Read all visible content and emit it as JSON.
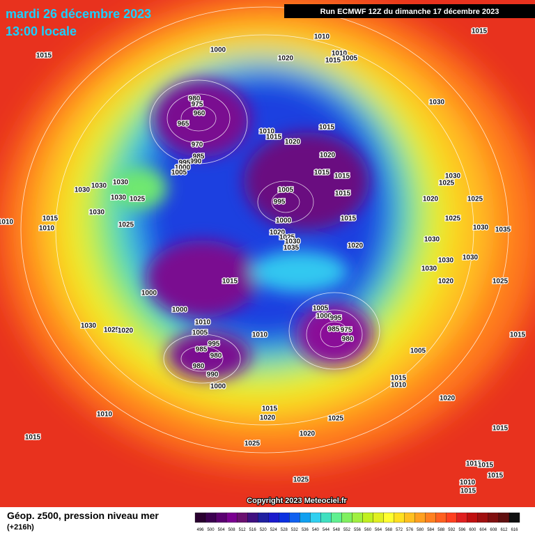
{
  "header": {
    "date": "mardi 26 décembre 2023",
    "time": "13:00 locale",
    "run": "Run ECMWF 12Z du dimanche 17 décembre 2023"
  },
  "copyright": "Copyright 2023 Meteociel.fr",
  "legend": {
    "title": "Géop. z500, pression niveau mer",
    "subtitle": "(+216h)",
    "levels": [
      496,
      500,
      504,
      508,
      512,
      516,
      520,
      524,
      528,
      532,
      536,
      540,
      544,
      548,
      552,
      556,
      560,
      564,
      568,
      572,
      576,
      580,
      584,
      588,
      592,
      596,
      600,
      604,
      608,
      612,
      616
    ]
  },
  "isobar_labels": [
    1000,
    1010,
    1015,
    1015,
    1020,
    1010,
    1015,
    1005,
    1030,
    980,
    975,
    960,
    965,
    970,
    985,
    990,
    995,
    1000,
    1005,
    1010,
    1015,
    1020,
    1015,
    1020,
    1015,
    1015,
    1015,
    1005,
    995,
    1000,
    1015,
    1020,
    1020,
    1025,
    1030,
    1035,
    1030,
    1025,
    1020,
    1025,
    1025,
    1030,
    1035,
    1030,
    1030,
    1030,
    1030,
    1020,
    1025,
    1030,
    1030,
    1030,
    1030,
    1025,
    1030,
    1015,
    1010,
    1025,
    1010,
    1015,
    1000,
    1000,
    1010,
    1005,
    995,
    985,
    980,
    980,
    990,
    1000,
    1010,
    1005,
    1000,
    995,
    985,
    975,
    980,
    1030,
    1025,
    1020,
    1015,
    1005,
    1015,
    1010,
    1015,
    1020,
    1025,
    1020,
    1010,
    1015,
    1025,
    1020,
    1015,
    1015,
    1015,
    1015,
    1010,
    1015,
    1025
  ]
}
